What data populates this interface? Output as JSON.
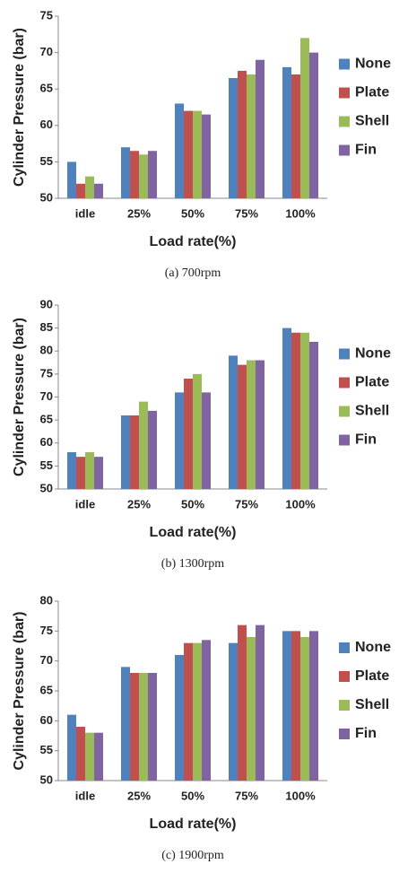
{
  "chart_data": [
    {
      "type": "bar",
      "caption": "(a)  700rpm",
      "y_label": "Cylinder Pressure (bar)",
      "x_label": "Load rate(%)",
      "categories": [
        "idle",
        "25%",
        "50%",
        "75%",
        "100%"
      ],
      "series": [
        {
          "name": "None",
          "color": "#4f81bd",
          "values": [
            55,
            57,
            63,
            66.5,
            68
          ]
        },
        {
          "name": "Plate",
          "color": "#c0504d",
          "values": [
            52,
            56.5,
            62,
            67.5,
            67
          ]
        },
        {
          "name": "Shell",
          "color": "#9bbb59",
          "values": [
            53,
            56,
            62,
            67,
            72
          ]
        },
        {
          "name": "Fin",
          "color": "#8064a2",
          "values": [
            52,
            56.5,
            61.5,
            69,
            70
          ]
        }
      ],
      "ylim": [
        50,
        75
      ],
      "yticks": [
        50,
        55,
        60,
        65,
        70,
        75
      ]
    },
    {
      "type": "bar",
      "caption": "(b)  1300rpm",
      "y_label": "Cylinder Pressure (bar)",
      "x_label": "Load rate(%)",
      "categories": [
        "idle",
        "25%",
        "50%",
        "75%",
        "100%"
      ],
      "series": [
        {
          "name": "None",
          "color": "#4f81bd",
          "values": [
            58,
            66,
            71,
            79,
            85
          ]
        },
        {
          "name": "Plate",
          "color": "#c0504d",
          "values": [
            57,
            66,
            74,
            77,
            84
          ]
        },
        {
          "name": "Shell",
          "color": "#9bbb59",
          "values": [
            58,
            69,
            75,
            78,
            84
          ]
        },
        {
          "name": "Fin",
          "color": "#8064a2",
          "values": [
            57,
            67,
            71,
            78,
            82
          ]
        }
      ],
      "ylim": [
        50,
        90
      ],
      "yticks": [
        50,
        55,
        60,
        65,
        70,
        75,
        80,
        85,
        90
      ]
    },
    {
      "type": "bar",
      "caption": "(c)  1900rpm",
      "y_label": "Cylinder Pressure (bar)",
      "x_label": "Load rate(%)",
      "categories": [
        "idle",
        "25%",
        "50%",
        "75%",
        "100%"
      ],
      "series": [
        {
          "name": "None",
          "color": "#4f81bd",
          "values": [
            61,
            69,
            71,
            73,
            75
          ]
        },
        {
          "name": "Plate",
          "color": "#c0504d",
          "values": [
            59,
            68,
            73,
            76,
            75
          ]
        },
        {
          "name": "Shell",
          "color": "#9bbb59",
          "values": [
            58,
            68,
            73,
            74,
            74
          ]
        },
        {
          "name": "Fin",
          "color": "#8064a2",
          "values": [
            58,
            68,
            73.5,
            76,
            75
          ]
        }
      ],
      "ylim": [
        50,
        80
      ],
      "yticks": [
        50,
        55,
        60,
        65,
        70,
        75,
        80
      ]
    }
  ]
}
